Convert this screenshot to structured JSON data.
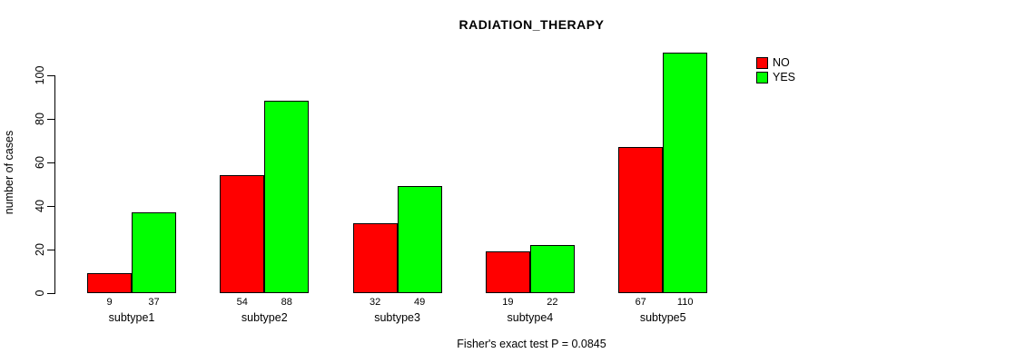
{
  "title": "RADIATION_THERAPY",
  "y_axis": {
    "label": "number of cases",
    "ticks": [
      0,
      20,
      40,
      60,
      80,
      100
    ]
  },
  "caption": "Fisher's exact test P = 0.0845",
  "legend": {
    "items": [
      {
        "label": "NO",
        "color": "#ff0000"
      },
      {
        "label": "YES",
        "color": "#00ff00"
      }
    ]
  },
  "chart_data": {
    "type": "bar",
    "title": "RADIATION_THERAPY",
    "xlabel": "",
    "ylabel": "number of cases",
    "categories": [
      "subtype1",
      "subtype2",
      "subtype3",
      "subtype4",
      "subtype5"
    ],
    "series": [
      {
        "name": "NO",
        "color": "#ff0000",
        "values": [
          9,
          54,
          32,
          19,
          67
        ]
      },
      {
        "name": "YES",
        "color": "#00ff00",
        "values": [
          37,
          88,
          49,
          22,
          110
        ]
      }
    ],
    "bar_value_labels": true,
    "yticks": [
      0,
      20,
      40,
      60,
      80,
      100
    ],
    "ylim": [
      0,
      110
    ],
    "grid": false,
    "legend_position": "top-right",
    "annotation": "Fisher's exact test P = 0.0845"
  }
}
